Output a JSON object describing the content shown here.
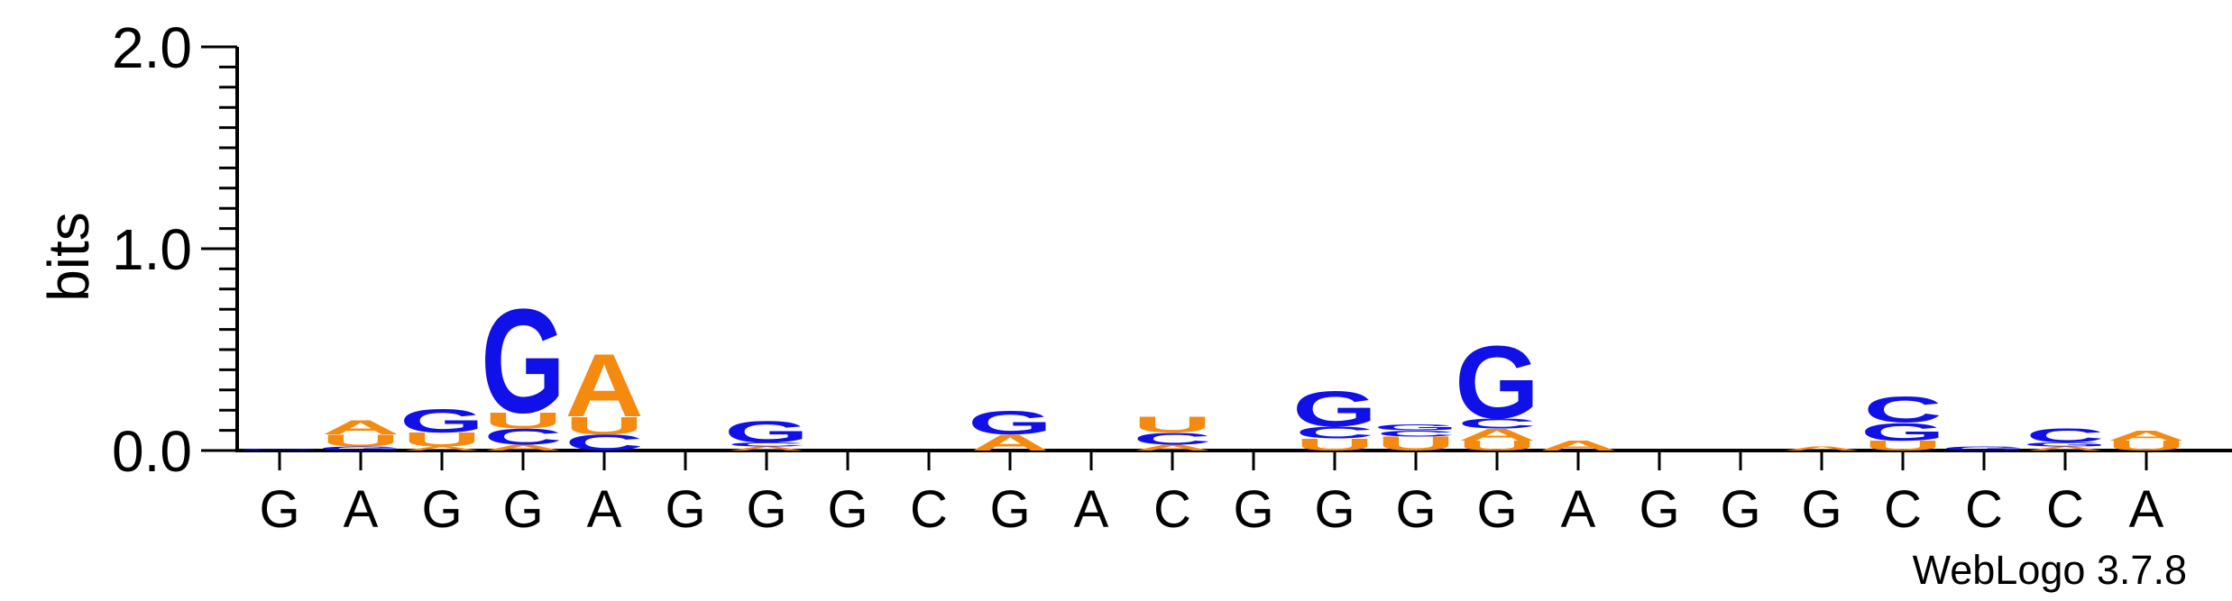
{
  "chart_data": {
    "type": "sequence-logo",
    "ylabel": "bits",
    "ylim": [
      0,
      2.0
    ],
    "yticks": [
      {
        "value": 0.0,
        "label": "0.0"
      },
      {
        "value": 1.0,
        "label": "1.0"
      },
      {
        "value": 2.0,
        "label": "2.0"
      }
    ],
    "colors": {
      "A": "#f58a10",
      "U": "#f58a10",
      "G": "#1010e8",
      "C": "#1010e8"
    },
    "columns": [
      {
        "label": "G",
        "stack": [
          {
            "base": "G",
            "bits": 0.01
          }
        ]
      },
      {
        "label": "A",
        "stack": [
          {
            "base": "G",
            "bits": 0.02
          },
          {
            "base": "U",
            "bits": 0.06
          },
          {
            "base": "A",
            "bits": 0.07
          }
        ]
      },
      {
        "label": "G",
        "stack": [
          {
            "base": "A",
            "bits": 0.02
          },
          {
            "base": "U",
            "bits": 0.07
          },
          {
            "base": "G",
            "bits": 0.12
          }
        ]
      },
      {
        "label": "G",
        "stack": [
          {
            "base": "A",
            "bits": 0.03
          },
          {
            "base": "C",
            "bits": 0.08
          },
          {
            "base": "U",
            "bits": 0.08
          },
          {
            "base": "G",
            "bits": 0.53
          }
        ]
      },
      {
        "label": "A",
        "stack": [
          {
            "base": "C",
            "bits": 0.08
          },
          {
            "base": "U",
            "bits": 0.09
          },
          {
            "base": "A",
            "bits": 0.32
          }
        ]
      },
      {
        "label": "G",
        "stack": []
      },
      {
        "label": "G",
        "stack": [
          {
            "base": "A",
            "bits": 0.02
          },
          {
            "base": "C",
            "bits": 0.02
          },
          {
            "base": "G",
            "bits": 0.11
          }
        ]
      },
      {
        "label": "G",
        "stack": []
      },
      {
        "label": "C",
        "stack": []
      },
      {
        "label": "G",
        "stack": [
          {
            "base": "A",
            "bits": 0.08
          },
          {
            "base": "G",
            "bits": 0.12
          }
        ]
      },
      {
        "label": "A",
        "stack": []
      },
      {
        "label": "C",
        "stack": [
          {
            "base": "A",
            "bits": 0.03
          },
          {
            "base": "C",
            "bits": 0.06
          },
          {
            "base": "U",
            "bits": 0.08
          }
        ]
      },
      {
        "label": "G",
        "stack": []
      },
      {
        "label": "G",
        "stack": [
          {
            "base": "U",
            "bits": 0.06
          },
          {
            "base": "C",
            "bits": 0.06
          },
          {
            "base": "G",
            "bits": 0.18
          }
        ]
      },
      {
        "label": "G",
        "stack": [
          {
            "base": "U",
            "bits": 0.07
          },
          {
            "base": "C",
            "bits": 0.03
          },
          {
            "base": "G",
            "bits": 0.03
          }
        ]
      },
      {
        "label": "G",
        "stack": [
          {
            "base": "U",
            "bits": 0.05
          },
          {
            "base": "A",
            "bits": 0.06
          },
          {
            "base": "C",
            "bits": 0.05
          },
          {
            "base": "G",
            "bits": 0.37
          }
        ]
      },
      {
        "label": "A",
        "stack": [
          {
            "base": "A",
            "bits": 0.05
          }
        ]
      },
      {
        "label": "G",
        "stack": []
      },
      {
        "label": "G",
        "stack": []
      },
      {
        "label": "G",
        "stack": [
          {
            "base": "A",
            "bits": 0.02
          }
        ]
      },
      {
        "label": "C",
        "stack": [
          {
            "base": "U",
            "bits": 0.05
          },
          {
            "base": "G",
            "bits": 0.09
          },
          {
            "base": "C",
            "bits": 0.13
          }
        ]
      },
      {
        "label": "C",
        "stack": [
          {
            "base": "G",
            "bits": 0.02
          }
        ]
      },
      {
        "label": "C",
        "stack": [
          {
            "base": "A",
            "bits": 0.02
          },
          {
            "base": "G",
            "bits": 0.02
          },
          {
            "base": "C",
            "bits": 0.07
          }
        ]
      },
      {
        "label": "A",
        "stack": [
          {
            "base": "U",
            "bits": 0.05
          },
          {
            "base": "A",
            "bits": 0.05
          }
        ]
      }
    ]
  },
  "footer": {
    "credit": "WebLogo 3.7.8"
  }
}
